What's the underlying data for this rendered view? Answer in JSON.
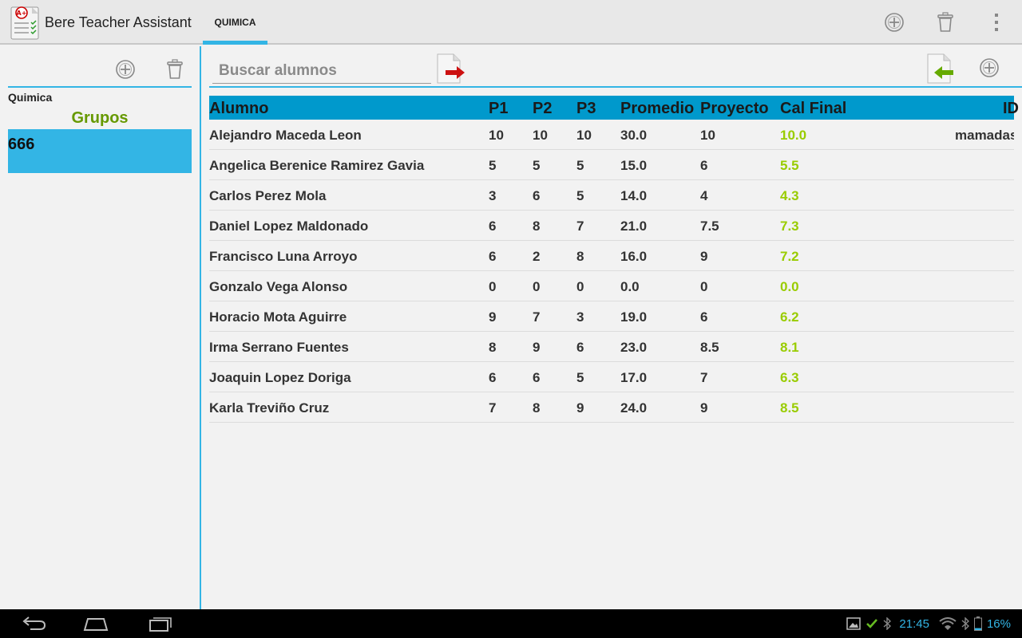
{
  "app": {
    "title": "Bere Teacher Assistant"
  },
  "tabs": [
    {
      "label": "QUIMICA",
      "selected": true
    }
  ],
  "actionbar": {
    "icons": [
      "add-circle-icon",
      "trash-icon",
      "overflow-menu-icon"
    ]
  },
  "left_pane": {
    "subject": "Quimica",
    "groups_heading": "Grupos",
    "groups": [
      {
        "label": "666",
        "selected": true
      }
    ]
  },
  "main": {
    "search": {
      "placeholder": "Buscar alumnos",
      "value": ""
    },
    "table": {
      "headers": {
        "alumno": "Alumno",
        "p1": "P1",
        "p2": "P2",
        "p3": "P3",
        "promedio": "Promedio",
        "proyecto": "Proyecto",
        "cal_final": "Cal Final",
        "id": "ID"
      },
      "rows": [
        {
          "alumno": "Alejandro Maceda Leon",
          "p1": "10",
          "p2": "10",
          "p3": "10",
          "promedio": "30.0",
          "proyecto": "10",
          "cal_final": "10.0",
          "id": "mamadas"
        },
        {
          "alumno": "Angelica Berenice Ramirez Gavia",
          "p1": "5",
          "p2": "5",
          "p3": "5",
          "promedio": "15.0",
          "proyecto": "6",
          "cal_final": "5.5",
          "id": ""
        },
        {
          "alumno": "Carlos Perez Mola",
          "p1": "3",
          "p2": "6",
          "p3": "5",
          "promedio": "14.0",
          "proyecto": "4",
          "cal_final": "4.3",
          "id": ""
        },
        {
          "alumno": "Daniel Lopez Maldonado",
          "p1": "6",
          "p2": "8",
          "p3": "7",
          "promedio": "21.0",
          "proyecto": "7.5",
          "cal_final": "7.3",
          "id": ""
        },
        {
          "alumno": "Francisco Luna Arroyo",
          "p1": "6",
          "p2": "2",
          "p3": "8",
          "promedio": "16.0",
          "proyecto": "9",
          "cal_final": "7.2",
          "id": ""
        },
        {
          "alumno": "Gonzalo Vega Alonso",
          "p1": "0",
          "p2": "0",
          "p3": "0",
          "promedio": "0.0",
          "proyecto": "0",
          "cal_final": "0.0",
          "id": ""
        },
        {
          "alumno": "Horacio Mota Aguirre",
          "p1": "9",
          "p2": "7",
          "p3": "3",
          "promedio": "19.0",
          "proyecto": "6",
          "cal_final": "6.2",
          "id": ""
        },
        {
          "alumno": "Irma Serrano Fuentes",
          "p1": "8",
          "p2": "9",
          "p3": "6",
          "promedio": "23.0",
          "proyecto": "8.5",
          "cal_final": "8.1",
          "id": ""
        },
        {
          "alumno": "Joaquin Lopez Doriga",
          "p1": "6",
          "p2": "6",
          "p3": "5",
          "promedio": "17.0",
          "proyecto": "7",
          "cal_final": "6.3",
          "id": ""
        },
        {
          "alumno": "Karla Treviño Cruz",
          "p1": "7",
          "p2": "8",
          "p3": "9",
          "promedio": "24.0",
          "proyecto": "9",
          "cal_final": "8.5",
          "id": ""
        }
      ]
    }
  },
  "status_bar": {
    "time": "21:45",
    "battery": "16%"
  },
  "colors": {
    "accent": "#33b5e5",
    "header_bg": "#0099cc",
    "final_grade": "#99cc00",
    "groups_heading": "#669900"
  }
}
